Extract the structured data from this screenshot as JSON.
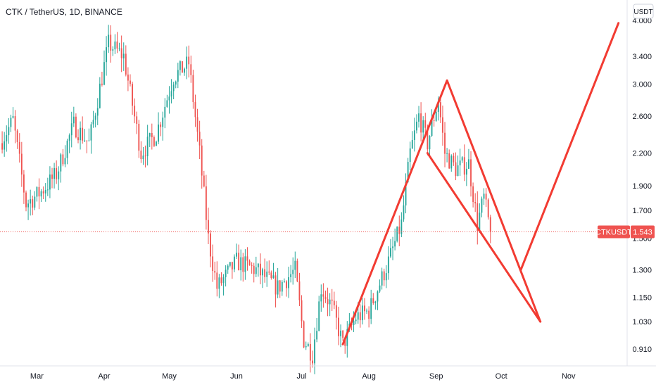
{
  "header": {
    "title": "CTK / TetherUS, 1D, BINANCE"
  },
  "colors": {
    "up": "#26a69a",
    "down": "#ef5350",
    "pattern": "#f23b32",
    "price_line": "#ef5350"
  },
  "chart_data": {
    "type": "candlestick",
    "title": "CTK / TetherUS, 1D, BINANCE",
    "y_scale": "log",
    "y_unit": "USDT",
    "ylim": [
      0.86,
      4.3
    ],
    "y_ticks": [
      4.0,
      3.4,
      3.0,
      2.6,
      2.2,
      1.9,
      1.7,
      1.5,
      1.3,
      1.15,
      1.03,
      0.91
    ],
    "y_tick_labels": [
      "4.000",
      "3.400",
      "3.000",
      "2.600",
      "2.200",
      "1.900",
      "1.700",
      "1.500",
      "1.300",
      "1.150",
      "1.030",
      "0.910"
    ],
    "x_ticks": [
      {
        "label": "Mar",
        "date": "2021-03-01"
      },
      {
        "label": "Apr",
        "date": "2021-04-01"
      },
      {
        "label": "May",
        "date": "2021-05-01"
      },
      {
        "label": "Jun",
        "date": "2021-06-01"
      },
      {
        "label": "Jul",
        "date": "2021-07-01"
      },
      {
        "label": "Aug",
        "date": "2021-08-01"
      },
      {
        "label": "Sep",
        "date": "2021-09-01"
      },
      {
        "label": "Oct",
        "date": "2021-10-01"
      },
      {
        "label": "Nov",
        "date": "2021-11-01"
      }
    ],
    "xlim": [
      "2021-02-12",
      "2021-11-28"
    ],
    "current_price": {
      "symbol": "CTKUSDT",
      "value": 1.543,
      "label": "1.543"
    },
    "price_anchors": [
      {
        "date": "2021-02-12",
        "price": 2.3
      },
      {
        "date": "2021-02-18",
        "price": 2.55
      },
      {
        "date": "2021-02-24",
        "price": 1.75
      },
      {
        "date": "2021-03-03",
        "price": 1.85
      },
      {
        "date": "2021-03-10",
        "price": 2.0
      },
      {
        "date": "2021-03-18",
        "price": 2.5
      },
      {
        "date": "2021-03-25",
        "price": 2.3
      },
      {
        "date": "2021-04-03",
        "price": 3.6
      },
      {
        "date": "2021-04-10",
        "price": 3.4
      },
      {
        "date": "2021-04-18",
        "price": 2.2
      },
      {
        "date": "2021-04-25",
        "price": 2.4
      },
      {
        "date": "2021-05-03",
        "price": 3.1
      },
      {
        "date": "2021-05-10",
        "price": 3.3
      },
      {
        "date": "2021-05-15",
        "price": 2.2
      },
      {
        "date": "2021-05-19",
        "price": 1.5
      },
      {
        "date": "2021-05-23",
        "price": 1.2
      },
      {
        "date": "2021-06-01",
        "price": 1.35
      },
      {
        "date": "2021-06-10",
        "price": 1.3
      },
      {
        "date": "2021-06-20",
        "price": 1.2
      },
      {
        "date": "2021-06-28",
        "price": 1.3
      },
      {
        "date": "2021-07-02",
        "price": 0.95
      },
      {
        "date": "2021-07-06",
        "price": 0.89
      },
      {
        "date": "2021-07-10",
        "price": 1.2
      },
      {
        "date": "2021-07-15",
        "price": 1.1
      },
      {
        "date": "2021-07-20",
        "price": 0.93
      },
      {
        "date": "2021-07-26",
        "price": 1.05
      },
      {
        "date": "2021-08-01",
        "price": 1.08
      },
      {
        "date": "2021-08-10",
        "price": 1.35
      },
      {
        "date": "2021-08-16",
        "price": 1.6
      },
      {
        "date": "2021-08-20",
        "price": 2.2
      },
      {
        "date": "2021-08-24",
        "price": 2.6
      },
      {
        "date": "2021-08-28",
        "price": 2.3
      },
      {
        "date": "2021-09-02",
        "price": 2.8
      },
      {
        "date": "2021-09-05",
        "price": 2.2
      },
      {
        "date": "2021-09-10",
        "price": 2.05
      },
      {
        "date": "2021-09-16",
        "price": 2.1
      },
      {
        "date": "2021-09-20",
        "price": 1.6
      },
      {
        "date": "2021-09-23",
        "price": 1.8
      },
      {
        "date": "2021-09-26",
        "price": 1.543
      }
    ],
    "pattern_lines": [
      {
        "from": {
          "date": "2021-07-20",
          "price": 0.93
        },
        "to": {
          "date": "2021-09-06",
          "price": 3.05
        }
      },
      {
        "from": {
          "date": "2021-08-28",
          "price": 2.2
        },
        "to": {
          "date": "2021-10-19",
          "price": 1.03
        }
      },
      {
        "from": {
          "date": "2021-09-06",
          "price": 3.05
        },
        "to": {
          "date": "2021-10-19",
          "price": 1.03
        }
      },
      {
        "from": {
          "date": "2021-10-10",
          "price": 1.3
        },
        "to": {
          "date": "2021-11-24",
          "price": 3.95
        }
      }
    ]
  }
}
